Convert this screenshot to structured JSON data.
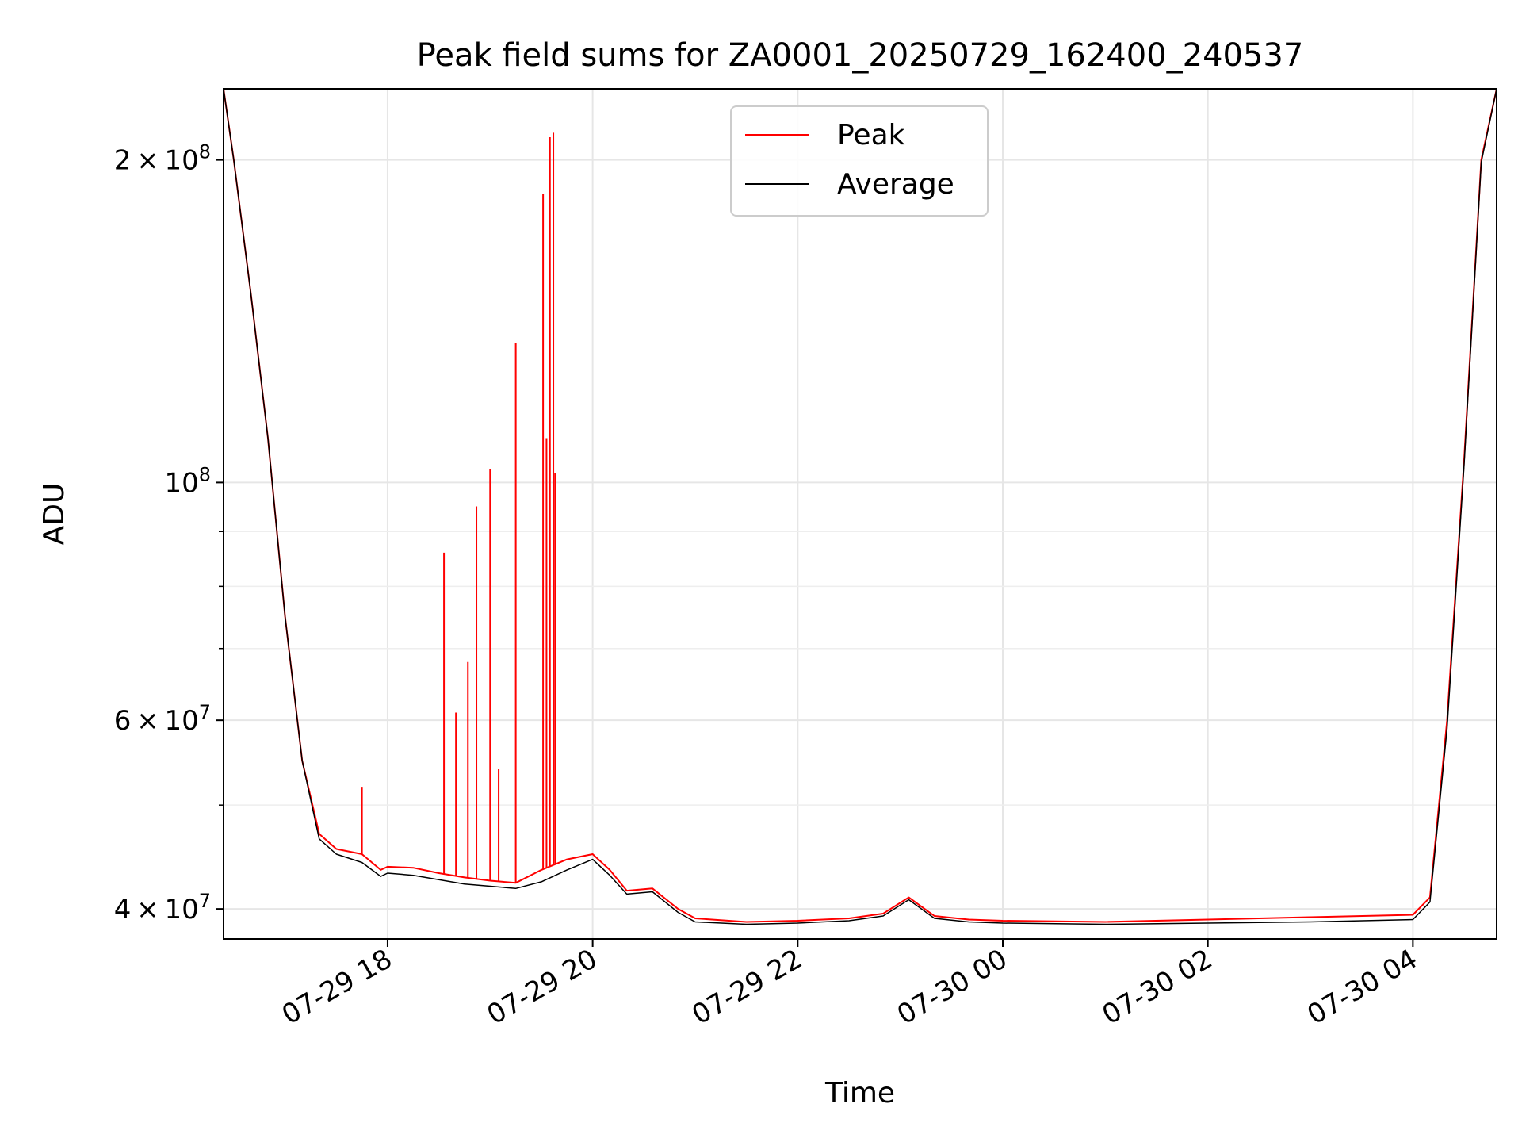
{
  "chart_data": {
    "type": "line",
    "title": "Peak field sums for ZA0001_20250729_162400_240537",
    "xlabel": "Time",
    "ylabel": "ADU",
    "x_range": [
      "2025-07-29 16:24",
      "2025-07-30 04:49"
    ],
    "ylim": [
      37500000,
      233000000
    ],
    "yscale": "log",
    "grid": true,
    "legend_position": "top-center",
    "x_ticks": [
      {
        "label": "07-29 18",
        "value": "2025-07-29 18:00"
      },
      {
        "label": "07-29 20",
        "value": "2025-07-29 20:00"
      },
      {
        "label": "07-29 22",
        "value": "2025-07-29 22:00"
      },
      {
        "label": "07-30 00",
        "value": "2025-07-30 00:00"
      },
      {
        "label": "07-30 02",
        "value": "2025-07-30 02:00"
      },
      {
        "label": "07-30 04",
        "value": "2025-07-30 04:00"
      }
    ],
    "y_ticks": [
      {
        "value": 40000000,
        "base": "4",
        "exp": "7"
      },
      {
        "value": 60000000,
        "base": "6",
        "exp": "7"
      },
      {
        "value": 100000000,
        "base": "",
        "exp": "8"
      },
      {
        "value": 200000000,
        "base": "2",
        "exp": "8"
      }
    ],
    "y_minor": [
      50000000,
      70000000,
      80000000,
      90000000
    ],
    "series": [
      {
        "name": "Peak",
        "color": "#ff0000",
        "points": [
          [
            "2025-07-29 16:24",
            233000000
          ],
          [
            "2025-07-29 16:30",
            200000000
          ],
          [
            "2025-07-29 16:40",
            150000000
          ],
          [
            "2025-07-29 16:50",
            110000000
          ],
          [
            "2025-07-29 17:00",
            75000000
          ],
          [
            "2025-07-29 17:10",
            55000000
          ],
          [
            "2025-07-29 17:20",
            47000000
          ],
          [
            "2025-07-29 17:30",
            45500000
          ],
          [
            "2025-07-29 17:45",
            45000000
          ],
          [
            "2025-07-29 17:56",
            43500000
          ],
          [
            "2025-07-29 18:00",
            43800000
          ],
          [
            "2025-07-29 18:15",
            43700000
          ],
          [
            "2025-07-29 18:30",
            43200000
          ],
          [
            "2025-07-29 18:45",
            42800000
          ],
          [
            "2025-07-29 19:00",
            42500000
          ],
          [
            "2025-07-29 19:15",
            42300000
          ],
          [
            "2025-07-29 19:30",
            43500000
          ],
          [
            "2025-07-29 19:45",
            44500000
          ],
          [
            "2025-07-29 20:00",
            45000000
          ],
          [
            "2025-07-29 20:10",
            43500000
          ],
          [
            "2025-07-29 20:20",
            41600000
          ],
          [
            "2025-07-29 20:35",
            41800000
          ],
          [
            "2025-07-29 20:50",
            40000000
          ],
          [
            "2025-07-29 21:00",
            39200000
          ],
          [
            "2025-07-29 21:30",
            38900000
          ],
          [
            "2025-07-29 22:00",
            39000000
          ],
          [
            "2025-07-29 22:30",
            39200000
          ],
          [
            "2025-07-29 22:50",
            39600000
          ],
          [
            "2025-07-29 23:05",
            41000000
          ],
          [
            "2025-07-29 23:20",
            39400000
          ],
          [
            "2025-07-29 23:40",
            39100000
          ],
          [
            "2025-07-30 00:00",
            39000000
          ],
          [
            "2025-07-30 01:00",
            38900000
          ],
          [
            "2025-07-30 02:00",
            39100000
          ],
          [
            "2025-07-30 03:00",
            39300000
          ],
          [
            "2025-07-30 04:00",
            39500000
          ],
          [
            "2025-07-30 04:10",
            41000000
          ],
          [
            "2025-07-30 04:20",
            60000000
          ],
          [
            "2025-07-30 04:30",
            105000000
          ],
          [
            "2025-07-30 04:40",
            200000000
          ],
          [
            "2025-07-30 04:49",
            233000000
          ]
        ],
        "spikes": [
          [
            "2025-07-29 17:45",
            52000000
          ],
          [
            "2025-07-29 18:33",
            86000000
          ],
          [
            "2025-07-29 18:40",
            61000000
          ],
          [
            "2025-07-29 18:47",
            68000000
          ],
          [
            "2025-07-29 18:52",
            95000000
          ],
          [
            "2025-07-29 19:00",
            103000000
          ],
          [
            "2025-07-29 19:05",
            54000000
          ],
          [
            "2025-07-29 19:15",
            135000000
          ],
          [
            "2025-07-29 19:31",
            186000000
          ],
          [
            "2025-07-29 19:33",
            110000000
          ],
          [
            "2025-07-29 19:35",
            210000000
          ],
          [
            "2025-07-29 19:37",
            212000000
          ],
          [
            "2025-07-29 19:38",
            102000000
          ]
        ]
      },
      {
        "name": "Average",
        "color": "#000000",
        "points": [
          [
            "2025-07-29 16:24",
            233000000
          ],
          [
            "2025-07-29 16:30",
            200000000
          ],
          [
            "2025-07-29 16:40",
            150000000
          ],
          [
            "2025-07-29 16:50",
            110000000
          ],
          [
            "2025-07-29 17:00",
            75000000
          ],
          [
            "2025-07-29 17:10",
            55000000
          ],
          [
            "2025-07-29 17:20",
            46500000
          ],
          [
            "2025-07-29 17:30",
            45000000
          ],
          [
            "2025-07-29 17:45",
            44200000
          ],
          [
            "2025-07-29 17:56",
            42900000
          ],
          [
            "2025-07-29 18:00",
            43200000
          ],
          [
            "2025-07-29 18:15",
            43000000
          ],
          [
            "2025-07-29 18:30",
            42600000
          ],
          [
            "2025-07-29 18:45",
            42200000
          ],
          [
            "2025-07-29 19:00",
            42000000
          ],
          [
            "2025-07-29 19:15",
            41800000
          ],
          [
            "2025-07-29 19:30",
            42400000
          ],
          [
            "2025-07-29 19:45",
            43500000
          ],
          [
            "2025-07-29 20:00",
            44500000
          ],
          [
            "2025-07-29 20:10",
            43000000
          ],
          [
            "2025-07-29 20:20",
            41300000
          ],
          [
            "2025-07-29 20:35",
            41500000
          ],
          [
            "2025-07-29 20:50",
            39700000
          ],
          [
            "2025-07-29 21:00",
            38900000
          ],
          [
            "2025-07-29 21:30",
            38700000
          ],
          [
            "2025-07-29 22:00",
            38800000
          ],
          [
            "2025-07-29 22:30",
            39000000
          ],
          [
            "2025-07-29 22:50",
            39400000
          ],
          [
            "2025-07-29 23:05",
            40800000
          ],
          [
            "2025-07-29 23:20",
            39200000
          ],
          [
            "2025-07-29 23:40",
            38900000
          ],
          [
            "2025-07-30 00:00",
            38800000
          ],
          [
            "2025-07-30 01:00",
            38700000
          ],
          [
            "2025-07-30 02:00",
            38800000
          ],
          [
            "2025-07-30 03:00",
            38900000
          ],
          [
            "2025-07-30 04:00",
            39100000
          ],
          [
            "2025-07-30 04:10",
            40600000
          ],
          [
            "2025-07-30 04:20",
            59000000
          ],
          [
            "2025-07-30 04:30",
            104000000
          ],
          [
            "2025-07-30 04:40",
            199000000
          ],
          [
            "2025-07-30 04:49",
            233000000
          ]
        ]
      }
    ]
  }
}
